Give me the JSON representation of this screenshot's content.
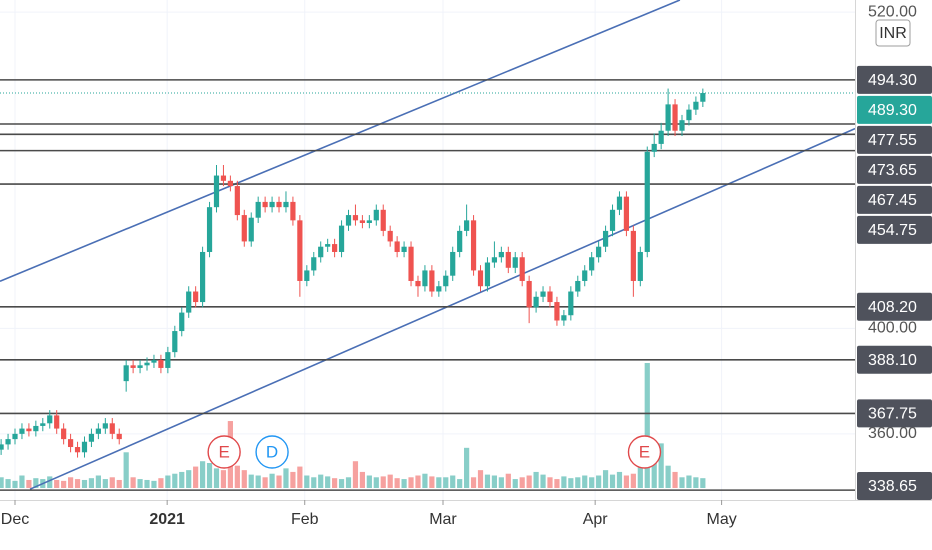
{
  "chart_data": {
    "type": "candlestick",
    "currency": "INR",
    "open": [
      354,
      356,
      358,
      360,
      362,
      361,
      363,
      364,
      367,
      362,
      358,
      355,
      353,
      357,
      360,
      362,
      364,
      360,
      380,
      386,
      385,
      386,
      387,
      388,
      385,
      391,
      399,
      406,
      414,
      410,
      429,
      446,
      458,
      456,
      454,
      443,
      433,
      442,
      448,
      446,
      448,
      446,
      448,
      441,
      418,
      422,
      427,
      431,
      432,
      429,
      439,
      443,
      441,
      440,
      441,
      445,
      437,
      433,
      429,
      431,
      418,
      416,
      422,
      414,
      416,
      420,
      429,
      437,
      441,
      422,
      416,
      425,
      427,
      429,
      423,
      427,
      418,
      408,
      412,
      414,
      410,
      403,
      405,
      414,
      418,
      422,
      427,
      431,
      437,
      445,
      450,
      437,
      418,
      429,
      467,
      470,
      475,
      485,
      475,
      479,
      483,
      486
    ],
    "high": [
      358,
      360,
      362,
      364,
      364,
      365,
      366,
      369,
      369,
      364,
      360,
      357,
      359,
      362,
      364,
      366,
      366,
      362,
      388,
      388,
      388,
      389,
      390,
      390,
      393,
      401,
      408,
      416,
      416,
      431,
      448,
      462,
      462,
      458,
      456,
      445,
      444,
      450,
      450,
      450,
      450,
      452,
      450,
      443,
      424,
      429,
      433,
      434,
      434,
      441,
      445,
      447,
      443,
      443,
      447,
      447,
      439,
      435,
      433,
      433,
      420,
      424,
      424,
      418,
      422,
      431,
      439,
      447,
      443,
      424,
      427,
      433,
      431,
      431,
      429,
      429,
      420,
      414,
      416,
      416,
      412,
      407,
      416,
      420,
      424,
      429,
      433,
      439,
      447,
      452,
      452,
      439,
      431,
      469,
      474,
      478,
      491,
      487,
      481,
      485,
      488,
      491
    ],
    "low": [
      352,
      354,
      356,
      358,
      359,
      359,
      361,
      362,
      360,
      356,
      353,
      351,
      351,
      355,
      358,
      360,
      358,
      356,
      376,
      383,
      383,
      384,
      385,
      383,
      383,
      389,
      397,
      404,
      408,
      408,
      427,
      444,
      454,
      452,
      441,
      431,
      431,
      440,
      444,
      444,
      444,
      444,
      439,
      412,
      416,
      420,
      425,
      429,
      427,
      427,
      437,
      439,
      438,
      438,
      439,
      435,
      431,
      427,
      427,
      416,
      412,
      414,
      412,
      412,
      414,
      418,
      427,
      435,
      420,
      414,
      414,
      423,
      425,
      421,
      421,
      416,
      402,
      406,
      410,
      408,
      401,
      401,
      403,
      412,
      416,
      420,
      425,
      429,
      435,
      443,
      435,
      412,
      416,
      427,
      465,
      468,
      473,
      473,
      473,
      477,
      481,
      484
    ],
    "close": [
      356,
      358,
      360,
      362,
      361,
      363,
      364,
      367,
      362,
      358,
      355,
      353,
      357,
      360,
      362,
      364,
      360,
      358,
      386,
      385,
      386,
      387,
      388,
      385,
      391,
      399,
      406,
      414,
      410,
      429,
      446,
      458,
      456,
      454,
      443,
      433,
      442,
      448,
      446,
      448,
      446,
      448,
      441,
      418,
      422,
      427,
      431,
      432,
      429,
      439,
      443,
      441,
      440,
      441,
      445,
      437,
      433,
      429,
      431,
      418,
      416,
      422,
      414,
      416,
      420,
      429,
      437,
      441,
      422,
      416,
      425,
      427,
      429,
      423,
      427,
      418,
      408,
      412,
      414,
      410,
      403,
      405,
      414,
      418,
      422,
      427,
      431,
      437,
      445,
      450,
      437,
      418,
      429,
      467,
      470,
      475,
      485,
      475,
      479,
      483,
      486,
      489.3
    ],
    "volume": [
      12,
      10,
      8,
      14,
      9,
      11,
      10,
      13,
      9,
      8,
      12,
      10,
      9,
      11,
      14,
      10,
      12,
      9,
      40,
      12,
      10,
      9,
      8,
      11,
      14,
      16,
      18,
      20,
      24,
      30,
      28,
      22,
      20,
      75,
      25,
      20,
      15,
      14,
      12,
      16,
      14,
      22,
      18,
      24,
      14,
      12,
      15,
      13,
      11,
      10,
      12,
      30,
      18,
      14,
      12,
      13,
      15,
      11,
      10,
      12,
      14,
      16,
      13,
      12,
      12,
      14,
      10,
      45,
      12,
      20,
      15,
      14,
      12,
      16,
      10,
      12,
      14,
      18,
      15,
      12,
      10,
      13,
      11,
      12,
      14,
      12,
      14,
      20,
      15,
      18,
      14,
      16,
      30,
      140,
      40,
      50,
      25,
      18,
      12,
      14,
      12,
      11
    ],
    "xlim": [
      -0.16,
      122.9
    ],
    "ylim": [
      334.9,
      524.6
    ],
    "yticks": [
      {
        "value": 520,
        "label": "520.00"
      },
      {
        "value": 400,
        "label": "400.00"
      },
      {
        "value": 360,
        "label": "360.00"
      }
    ],
    "xticks": [
      {
        "value": 2,
        "label": "Dec"
      },
      {
        "value": 23.9,
        "label": "2021"
      },
      {
        "value": 43.7,
        "label": "Feb"
      },
      {
        "value": 63.6,
        "label": "Mar"
      },
      {
        "value": 85.5,
        "label": "Apr"
      },
      {
        "value": 103.7,
        "label": "May"
      }
    ],
    "levels": [
      {
        "value": 494.3,
        "label": "494.30"
      },
      {
        "value": 477.55,
        "label": "477.55"
      },
      {
        "value": 473.65,
        "label": "473.65"
      },
      {
        "value": 467.45,
        "label": "467.45"
      },
      {
        "value": 454.75,
        "label": "454.75"
      },
      {
        "value": 408.2,
        "label": "408.20"
      },
      {
        "value": 388.1,
        "label": "388.10"
      },
      {
        "value": 367.75,
        "label": "367.75"
      },
      {
        "value": 338.65,
        "label": "338.65"
      }
    ],
    "last_price": {
      "value": 489.3,
      "label": "489.30"
    },
    "trendlines": [
      {
        "points": [
          [
            -0.16,
            417.9
          ],
          [
            97.7,
            524.6
          ]
        ]
      },
      {
        "points": [
          [
            4.16,
            339.0
          ],
          [
            122.9,
            475.8
          ]
        ]
      }
    ],
    "events": [
      {
        "label": "E",
        "x": 32.1,
        "color": "#e0484a"
      },
      {
        "label": "D",
        "x": 39.0,
        "color": "#2196f3"
      },
      {
        "label": "E",
        "x": 92.6,
        "color": "#e0484a"
      }
    ],
    "up_color": "#26a69a",
    "down_color": "#ef5350",
    "level_color": "#4a4a4a",
    "trend_color": "#4a6fb5",
    "last_color": "#26a69a",
    "grid": true
  }
}
